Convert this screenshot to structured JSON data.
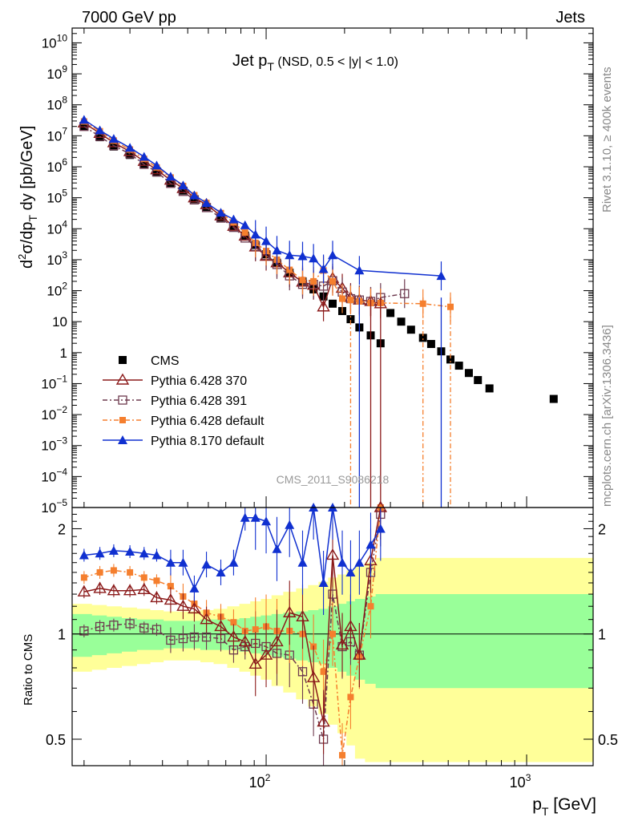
{
  "header": {
    "left": "7000 GeV pp",
    "right": "Jets"
  },
  "side_labels": {
    "rivet": "Rivet 3.1.10, ≥ 400k events",
    "mcplots": "mcplots.cern.ch [arXiv:1306.3436]"
  },
  "watermark": "CMS_2011_S9086218",
  "main_title": {
    "text": "Jet p",
    "sub": "T",
    "cond": " (NSD, 0.5 < |y| < 1.0)"
  },
  "ylabel_main": {
    "pre": "d",
    "sup": "2",
    "mid": "σ/dp",
    "sub": "T",
    "post": " dy [pb/GeV]"
  },
  "ylabel_ratio": "Ratio to CMS",
  "xlabel": {
    "main": "p",
    "sub": "T",
    "unit": " [GeV]"
  },
  "legend": [
    "CMS",
    "Pythia 6.428 370",
    "Pythia 6.428 391",
    "Pythia 6.428 default",
    "Pythia 8.170 default"
  ],
  "colors": {
    "cms": "#000000",
    "p370": "#8b1a1a",
    "p391": "#6e3a4f",
    "pdef": "#f57f2e",
    "p8": "#1030d0",
    "band_inner": "#99ff99",
    "band_outer": "#ffff99"
  },
  "chart_data": {
    "type": "scatter",
    "xscale": "log",
    "yscale": "log",
    "xlim": [
      18,
      1800
    ],
    "ylim": [
      1e-05,
      30000000000.0
    ],
    "ratio_ylim": [
      0.42,
      2.3
    ],
    "x_ticks": [
      {
        "value": 100,
        "label": "10",
        "exp": "2"
      },
      {
        "value": 1000,
        "label": "10",
        "exp": "3"
      }
    ],
    "y_ticks": [
      {
        "value": 10000000000.0,
        "label": "10",
        "exp": "10"
      },
      {
        "value": 1000000000.0,
        "label": "10",
        "exp": "9"
      },
      {
        "value": 100000000.0,
        "label": "10",
        "exp": "8"
      },
      {
        "value": 10000000.0,
        "label": "10",
        "exp": "7"
      },
      {
        "value": 1000000.0,
        "label": "10",
        "exp": "6"
      },
      {
        "value": 100000.0,
        "label": "10",
        "exp": "5"
      },
      {
        "value": 10000.0,
        "label": "10",
        "exp": "4"
      },
      {
        "value": 1000.0,
        "label": "10",
        "exp": "3"
      },
      {
        "value": 100,
        "label": "10",
        "exp": "2"
      },
      {
        "value": 10,
        "label": "10",
        "exp": ""
      },
      {
        "value": 1,
        "label": "1",
        "exp": ""
      },
      {
        "value": 0.1,
        "label": "10",
        "exp": "−1"
      },
      {
        "value": 0.01,
        "label": "10",
        "exp": "−2"
      },
      {
        "value": 0.001,
        "label": "10",
        "exp": "−3"
      },
      {
        "value": 0.0001,
        "label": "10",
        "exp": "−4"
      },
      {
        "value": 1e-05,
        "label": "10",
        "exp": "−5"
      }
    ],
    "ratio_ticks": [
      {
        "value": 0.5,
        "label": "0.5"
      },
      {
        "value": 1,
        "label": "1"
      },
      {
        "value": 2,
        "label": "2"
      }
    ],
    "x": [
      20,
      23,
      26,
      30,
      34,
      38,
      43,
      48,
      53,
      59,
      67,
      75,
      83,
      91,
      100,
      110,
      123,
      138,
      152,
      166,
      180,
      196,
      211,
      228,
      252,
      275,
      300,
      330,
      360,
      400,
      430,
      470,
      510,
      550,
      600,
      650,
      720,
      1270
    ],
    "series": [
      {
        "name": "CMS",
        "values": [
          20000000,
          9000000,
          4500000,
          2400000,
          1200000,
          650000,
          300000,
          170000,
          90000,
          50000,
          23000,
          12000,
          6000,
          3000,
          1500,
          800,
          380,
          200,
          110,
          65,
          38,
          22,
          12,
          6.5,
          3.6,
          2.0,
          19,
          10,
          5.5,
          3.0,
          1.9,
          1.1,
          0.6,
          0.38,
          0.22,
          0.13,
          0.07,
          0.032
        ]
      },
      {
        "name": "Pythia 6.428 370",
        "x": [
          20,
          23,
          26,
          30,
          34,
          38,
          43,
          48,
          53,
          59,
          67,
          75,
          83,
          91,
          100,
          110,
          123,
          138,
          152,
          166,
          180,
          196,
          211,
          228,
          252,
          275
        ],
        "values": [
          26000000,
          12000000,
          6000000,
          3100000,
          1500000,
          800000,
          370000,
          200000,
          100000,
          60000,
          26000,
          12000,
          5800,
          2600,
          1300,
          800,
          380,
          190,
          150,
          30,
          250,
          120,
          60,
          50,
          45,
          38
        ]
      },
      {
        "name": "Pythia 6.428 391",
        "x": [
          20,
          23,
          26,
          30,
          34,
          38,
          43,
          48,
          53,
          59,
          67,
          75,
          83,
          91,
          100,
          110,
          123,
          138,
          152,
          166,
          180,
          196,
          211,
          228,
          252,
          275,
          340
        ],
        "values": [
          20000000,
          9500000,
          4800000,
          2600000,
          1200000,
          680000,
          290000,
          160000,
          85000,
          48000,
          22000,
          11000,
          5000,
          2700,
          1400,
          700,
          300,
          160,
          160,
          140,
          210,
          90,
          55,
          50,
          45,
          60,
          80
        ]
      },
      {
        "name": "Pythia 6.428 default",
        "x": [
          20,
          23,
          26,
          30,
          34,
          38,
          43,
          48,
          53,
          59,
          67,
          75,
          83,
          91,
          100,
          110,
          123,
          138,
          152,
          166,
          180,
          196,
          211,
          228,
          252,
          275,
          400,
          510
        ],
        "values": [
          29000000,
          14000000,
          7000000,
          3600000,
          1800000,
          950000,
          450000,
          240000,
          120000,
          68000,
          32000,
          16000,
          7500,
          3500,
          1900,
          1000,
          470,
          220,
          200,
          450,
          200,
          55,
          50,
          45,
          40,
          40,
          38,
          30
        ]
      },
      {
        "name": "Pythia 8.170 default",
        "x": [
          20,
          23,
          26,
          30,
          34,
          38,
          43,
          48,
          53,
          59,
          67,
          75,
          83,
          91,
          100,
          110,
          123,
          138,
          152,
          166,
          180,
          228,
          470
        ],
        "values": [
          33000000,
          15000000,
          8000000,
          4100000,
          2100000,
          1100000,
          480000,
          250000,
          120000,
          68000,
          33000,
          20000,
          13000,
          6500,
          4000,
          2000,
          1400,
          1300,
          1100,
          500,
          1400,
          450,
          300
        ]
      }
    ],
    "ratio": {
      "x": [
        20,
        23,
        26,
        30,
        34,
        38,
        43,
        48,
        53,
        59,
        67,
        75,
        83,
        91,
        100,
        110,
        123,
        138,
        152,
        166,
        180,
        196,
        211,
        228,
        252,
        275
      ],
      "p370": [
        1.32,
        1.35,
        1.33,
        1.33,
        1.34,
        1.27,
        1.25,
        1.2,
        1.18,
        1.1,
        1.05,
        0.98,
        0.95,
        0.82,
        0.87,
        0.95,
        1.15,
        1.12,
        0.75,
        0.56,
        1.68,
        0.93,
        1.05,
        0.87,
        1.62,
        2.3
      ],
      "p391": [
        1.02,
        1.05,
        1.06,
        1.07,
        1.04,
        1.03,
        0.96,
        0.97,
        0.98,
        0.98,
        0.97,
        0.9,
        0.92,
        0.94,
        0.92,
        0.88,
        0.87,
        0.78,
        0.63,
        0.5,
        1.3,
        0.92,
        0.95,
        0.87,
        1.5,
        2.2
      ],
      "pdef": [
        1.45,
        1.5,
        1.52,
        1.5,
        1.45,
        1.42,
        1.37,
        1.28,
        1.22,
        1.15,
        1.12,
        1.08,
        1.02,
        1.03,
        1.05,
        1.02,
        1.02,
        1.0,
        0.92,
        0.78,
        1.0,
        0.45,
        0.66,
        0.86,
        1.2,
        2.3
      ],
      "p8": [
        1.68,
        1.7,
        1.73,
        1.72,
        1.7,
        1.68,
        1.6,
        1.6,
        1.35,
        1.58,
        1.5,
        1.6,
        2.15,
        2.15,
        2.1,
        1.75,
        2.05,
        1.6,
        2.3,
        1.4,
        2.3,
        1.6,
        1.5,
        1.6,
        1.8,
        2.0
      ],
      "band_inner_half": [
        0.14,
        0.13,
        0.12,
        0.11,
        0.1,
        0.1,
        0.09,
        0.09,
        0.09,
        0.1,
        0.1,
        0.1,
        0.11,
        0.12,
        0.13,
        0.14,
        0.15,
        0.16,
        0.17,
        0.18,
        0.2,
        0.22,
        0.24,
        0.26,
        0.28,
        0.3
      ],
      "band_outer_half": [
        0.22,
        0.21,
        0.2,
        0.19,
        0.18,
        0.17,
        0.16,
        0.16,
        0.16,
        0.17,
        0.18,
        0.2,
        0.22,
        0.24,
        0.26,
        0.29,
        0.32,
        0.35,
        0.38,
        0.41,
        0.45,
        0.48,
        0.52,
        0.56,
        0.6,
        0.65
      ]
    }
  }
}
